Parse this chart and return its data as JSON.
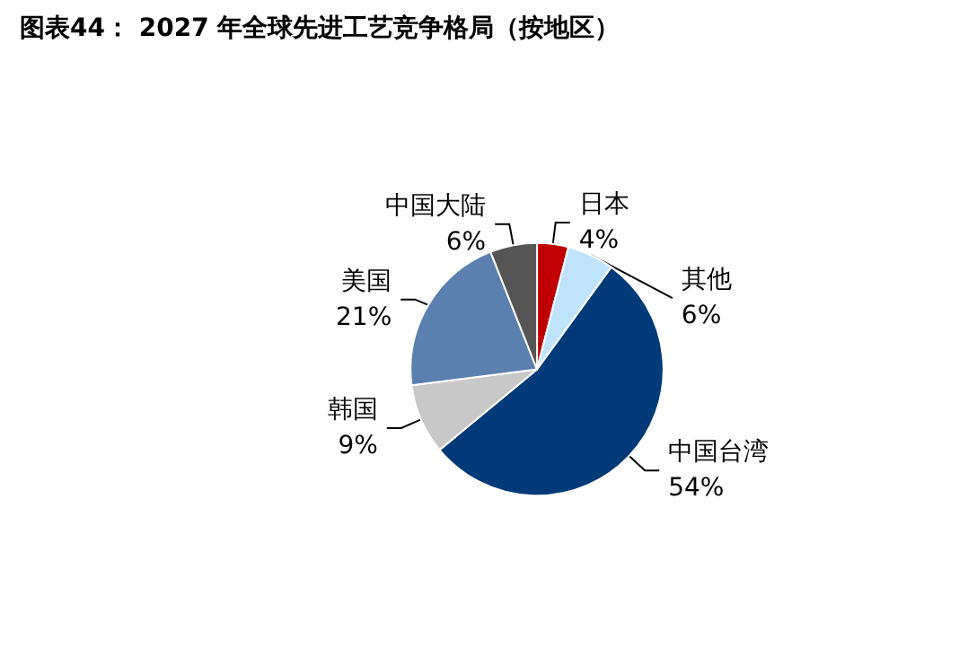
{
  "chart_data": {
    "type": "pie",
    "title": "图表44： 2027 年全球先进工艺竞争格局（按地区）",
    "categories": [
      "日本",
      "其他",
      "中国台湾",
      "韩国",
      "美国",
      "中国大陆"
    ],
    "values": [
      4,
      6,
      54,
      9,
      21,
      6
    ],
    "value_labels": [
      "4%",
      "6%",
      "54%",
      "9%",
      "21%",
      "6%"
    ],
    "colors": [
      "#c00000",
      "#bfe3fb",
      "#003a78",
      "#c8c8c8",
      "#5b7faf",
      "#555555"
    ],
    "legend": false
  }
}
